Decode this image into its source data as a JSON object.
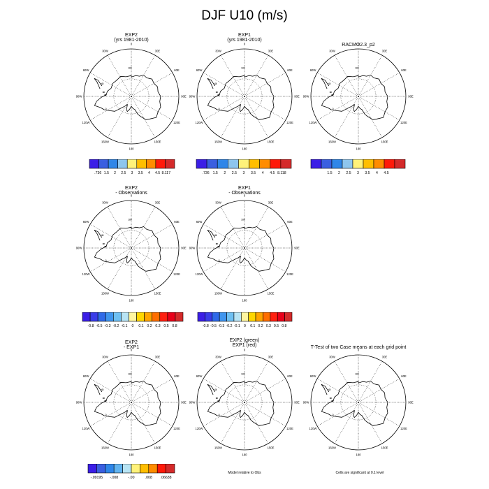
{
  "page": {
    "title": "DJF U10 (m/s)"
  },
  "map": {
    "projection": "south-polar-stereographic",
    "meridian_labels": [
      "0",
      "30E",
      "60E",
      "90E",
      "120E",
      "150E",
      "180",
      "150W",
      "120W",
      "90W",
      "60W",
      "30W"
    ],
    "coast_labels": [
      "180",
      "0"
    ]
  },
  "panels": [
    {
      "id": "exp2",
      "title": [
        "EXP2",
        "(yrs 1981-2010)"
      ]
    },
    {
      "id": "exp1",
      "title": [
        "EXP1",
        "(yrs 1981-2010)"
      ]
    },
    {
      "id": "racmo",
      "title": [
        "RACMO2.3_p2"
      ]
    },
    {
      "id": "exp2-obs",
      "title": [
        "EXP2",
        "- Observations"
      ]
    },
    {
      "id": "exp1-obs",
      "title": [
        "EXP1",
        "- Observations"
      ]
    },
    {
      "id": "exp2-exp1",
      "title": [
        "EXP2",
        "- EXP1"
      ]
    },
    {
      "id": "exp2-vs-exp1",
      "title": [
        "EXP2 (green)",
        "EXP1 (red)"
      ]
    },
    {
      "id": "ttest",
      "title": [
        "T-Test of two Case means at each grid point"
      ]
    }
  ],
  "colorbars": [
    {
      "id": "cb-exp2",
      "colors": [
        "#3b1ee6",
        "#3a5fe0",
        "#2f86e8",
        "#8ec6ee",
        "#fff27a",
        "#ffbe00",
        "#ff8c00",
        "#ff1a0a",
        "#d42a2a"
      ],
      "labels": [
        ".736",
        "1.5",
        "2",
        "2.5",
        "3",
        "3.5",
        "4",
        "4.5",
        "8.117"
      ]
    },
    {
      "id": "cb-exp1",
      "colors": [
        "#3b1ee6",
        "#3a5fe0",
        "#2f86e8",
        "#8ec6ee",
        "#fff27a",
        "#ffbe00",
        "#ff8c00",
        "#ff1a0a",
        "#d42a2a"
      ],
      "labels": [
        ".736",
        "1.5",
        "2",
        "2.5",
        "3",
        "3.5",
        "4",
        "4.5",
        "8.118"
      ]
    },
    {
      "id": "cb-racmo",
      "colors": [
        "#3b1ee6",
        "#3a5fe0",
        "#2f86e8",
        "#8ec6ee",
        "#fff27a",
        "#ffbe00",
        "#ff8c00",
        "#ff1a0a",
        "#d42a2a"
      ],
      "labels": [
        "",
        "1.5",
        "2",
        "2.5",
        "3",
        "3.5",
        "4",
        "4.5",
        ""
      ]
    },
    {
      "id": "cb-exp2-obs",
      "colors": [
        "#3b1ee6",
        "#3a3ce8",
        "#2f6ae8",
        "#3f95ee",
        "#6ec0f2",
        "#b8e4f4",
        "#fff6a0",
        "#ffd600",
        "#ffa400",
        "#ff6e00",
        "#ff2010",
        "#e8001a",
        "#d42a2a"
      ],
      "labels": [
        "-0.8",
        "-0.5",
        "-0.3",
        "-0.2",
        "-0.1",
        "0",
        "0.1",
        "0.2",
        "0.3",
        "0.5",
        "0.8"
      ]
    },
    {
      "id": "cb-exp1-obs",
      "colors": [
        "#3b1ee6",
        "#3a3ce8",
        "#2f6ae8",
        "#3f95ee",
        "#6ec0f2",
        "#b8e4f4",
        "#fff6a0",
        "#ffd600",
        "#ffa400",
        "#ff6e00",
        "#ff2010",
        "#e8001a",
        "#d42a2a"
      ],
      "labels": [
        "-0.8",
        "-0.5",
        "-0.3",
        "-0.2",
        "-0.1",
        "0",
        "0.1",
        "0.2",
        "0.3",
        "0.5",
        "0.8"
      ]
    },
    {
      "id": "cb-exp2-exp1",
      "colors": [
        "#3b1ee6",
        "#3a5fe0",
        "#2f86e8",
        "#62b4f0",
        "#b8e4f4",
        "#fff27a",
        "#ffbe00",
        "#ff8c00",
        "#ff1a0a",
        "#d42a2a"
      ],
      "labels": [
        "-.09195",
        "",
        "-.008",
        "",
        "-.00",
        "",
        ".008",
        "",
        ".06638"
      ]
    }
  ],
  "notes": {
    "model_relative": "Model relative to Obs",
    "significance": "Cells are significant at 0.1 level"
  },
  "chart_data": {
    "type": "heatmap",
    "title": "DJF U10 (m/s)",
    "subplots": [
      {
        "title": "EXP2 (yrs 1981-2010)",
        "colorbar_labels": [
          ".736",
          "1.5",
          "2",
          "2.5",
          "3",
          "3.5",
          "4",
          "4.5",
          "8.117"
        ]
      },
      {
        "title": "EXP1 (yrs 1981-2010)",
        "colorbar_labels": [
          ".736",
          "1.5",
          "2",
          "2.5",
          "3",
          "3.5",
          "4",
          "4.5",
          "8.118"
        ]
      },
      {
        "title": "RACMO2.3_p2",
        "colorbar_labels": [
          "1.5",
          "2",
          "2.5",
          "3",
          "3.5",
          "4",
          "4.5"
        ]
      },
      {
        "title": "EXP2 - Observations",
        "colorbar_labels": [
          "-0.8",
          "-0.5",
          "-0.3",
          "-0.2",
          "-0.1",
          "0",
          "0.1",
          "0.2",
          "0.3",
          "0.5",
          "0.8"
        ]
      },
      {
        "title": "EXP1 - Observations",
        "colorbar_labels": [
          "-0.8",
          "-0.5",
          "-0.3",
          "-0.2",
          "-0.1",
          "0",
          "0.1",
          "0.2",
          "0.3",
          "0.5",
          "0.8"
        ]
      },
      {
        "title": "EXP2 - EXP1",
        "colorbar_labels": [
          "-.09195",
          "-.008",
          "-.00",
          ".008",
          ".06638"
        ]
      },
      {
        "title": "EXP2 (green) EXP1 (red)"
      },
      {
        "title": "T-Test of two Case means at each grid point"
      }
    ]
  }
}
